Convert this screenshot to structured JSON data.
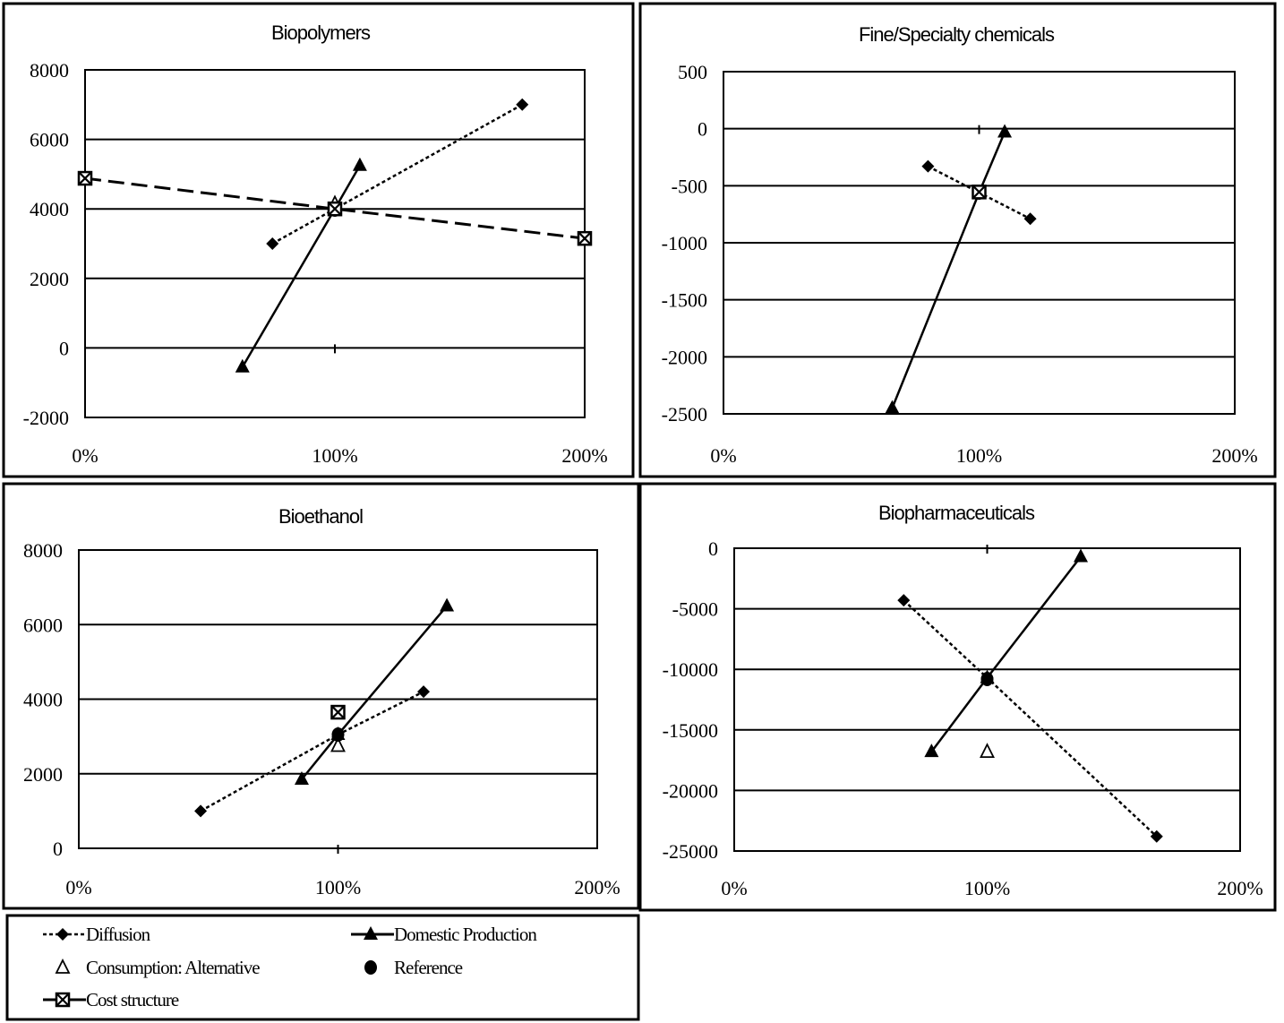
{
  "chart_data": [
    {
      "type": "line",
      "title": "Biopolymers",
      "xlabel": "",
      "ylabel": "",
      "xlim": [
        0,
        200
      ],
      "ylim": [
        -2000,
        8000
      ],
      "x_ticks": [
        "0%",
        "100%",
        "200%"
      ],
      "y_ticks": [
        "8000",
        "6000",
        "4000",
        "2000",
        "0",
        "-2000"
      ],
      "grid": true,
      "series": [
        {
          "name": "Diffusion",
          "x": [
            75,
            100,
            175
          ],
          "y": [
            3000,
            4000,
            7000
          ]
        },
        {
          "name": "Domestic Production",
          "x": [
            63,
            100,
            110
          ],
          "y": [
            -550,
            4000,
            5250
          ]
        },
        {
          "name": "Consumption: Alternative",
          "x": [
            100
          ],
          "y": [
            4150
          ]
        },
        {
          "name": "Reference",
          "x": [
            100
          ],
          "y": [
            3980
          ]
        },
        {
          "name": "Cost structure",
          "x": [
            0,
            100,
            200
          ],
          "y": [
            4880,
            4000,
            3150
          ]
        }
      ]
    },
    {
      "type": "line",
      "title": "Fine/Specialty chemicals",
      "xlabel": "",
      "ylabel": "",
      "xlim": [
        0,
        200
      ],
      "ylim": [
        -2500,
        500
      ],
      "x_ticks": [
        "0%",
        "100%",
        "200%"
      ],
      "y_ticks": [
        "500",
        "0",
        "-500",
        "-1000",
        "-1500",
        "-2000",
        "-2500"
      ],
      "grid": true,
      "series": [
        {
          "name": "Diffusion",
          "x": [
            80,
            100,
            120
          ],
          "y": [
            -330,
            -560,
            -790
          ]
        },
        {
          "name": "Domestic Production",
          "x": [
            66,
            100,
            110
          ],
          "y": [
            -2450,
            -560,
            -30
          ]
        },
        {
          "name": "Reference",
          "x": [
            100
          ],
          "y": [
            -560
          ]
        },
        {
          "name": "Cost structure",
          "x": [
            100
          ],
          "y": [
            -555
          ]
        }
      ]
    },
    {
      "type": "line",
      "title": "Bioethanol",
      "xlabel": "",
      "ylabel": "",
      "xlim": [
        0,
        200
      ],
      "ylim": [
        0,
        8000
      ],
      "x_ticks": [
        "0%",
        "100%",
        "200%"
      ],
      "y_ticks": [
        "8000",
        "6000",
        "4000",
        "2000",
        "0"
      ],
      "grid": true,
      "series": [
        {
          "name": "Diffusion",
          "x": [
            47,
            100,
            133
          ],
          "y": [
            1000,
            3050,
            4200
          ]
        },
        {
          "name": "Domestic Production",
          "x": [
            86,
            100,
            142
          ],
          "y": [
            1850,
            3050,
            6500
          ]
        },
        {
          "name": "Consumption: Alternative",
          "x": [
            100
          ],
          "y": [
            2750
          ]
        },
        {
          "name": "Reference",
          "x": [
            100
          ],
          "y": [
            3050
          ]
        },
        {
          "name": "Cost structure",
          "x": [
            100
          ],
          "y": [
            3650
          ]
        }
      ]
    },
    {
      "type": "line",
      "title": "Biopharmaceuticals",
      "xlabel": "",
      "ylabel": "",
      "xlim": [
        0,
        200
      ],
      "ylim": [
        -25000,
        0
      ],
      "x_ticks": [
        "0%",
        "100%",
        "200%"
      ],
      "y_ticks": [
        "0",
        "-5000",
        "-10000",
        "-15000",
        "-20000",
        "-25000"
      ],
      "grid": true,
      "series": [
        {
          "name": "Diffusion",
          "x": [
            67,
            100,
            167
          ],
          "y": [
            -4300,
            -10700,
            -23800
          ]
        },
        {
          "name": "Domestic Production",
          "x": [
            78,
            100,
            137
          ],
          "y": [
            -16800,
            -10700,
            -700
          ]
        },
        {
          "name": "Consumption: Alternative",
          "x": [
            100
          ],
          "y": [
            -16800
          ]
        },
        {
          "name": "Reference",
          "x": [
            100
          ],
          "y": [
            -10800
          ]
        }
      ]
    }
  ],
  "legend": {
    "items": [
      {
        "label": "Diffusion",
        "marker": "diamond",
        "line": "dotted"
      },
      {
        "label": "Domestic Production",
        "marker": "triangle",
        "line": "solid"
      },
      {
        "label": "Consumption: Alternative",
        "marker": "open-triangle",
        "line": "none"
      },
      {
        "label": "Reference",
        "marker": "circle",
        "line": "none"
      },
      {
        "label": "Cost structure",
        "marker": "box-x",
        "line": "solid"
      }
    ]
  },
  "colors": {
    "ink": "#000000",
    "background": "#ffffff"
  }
}
